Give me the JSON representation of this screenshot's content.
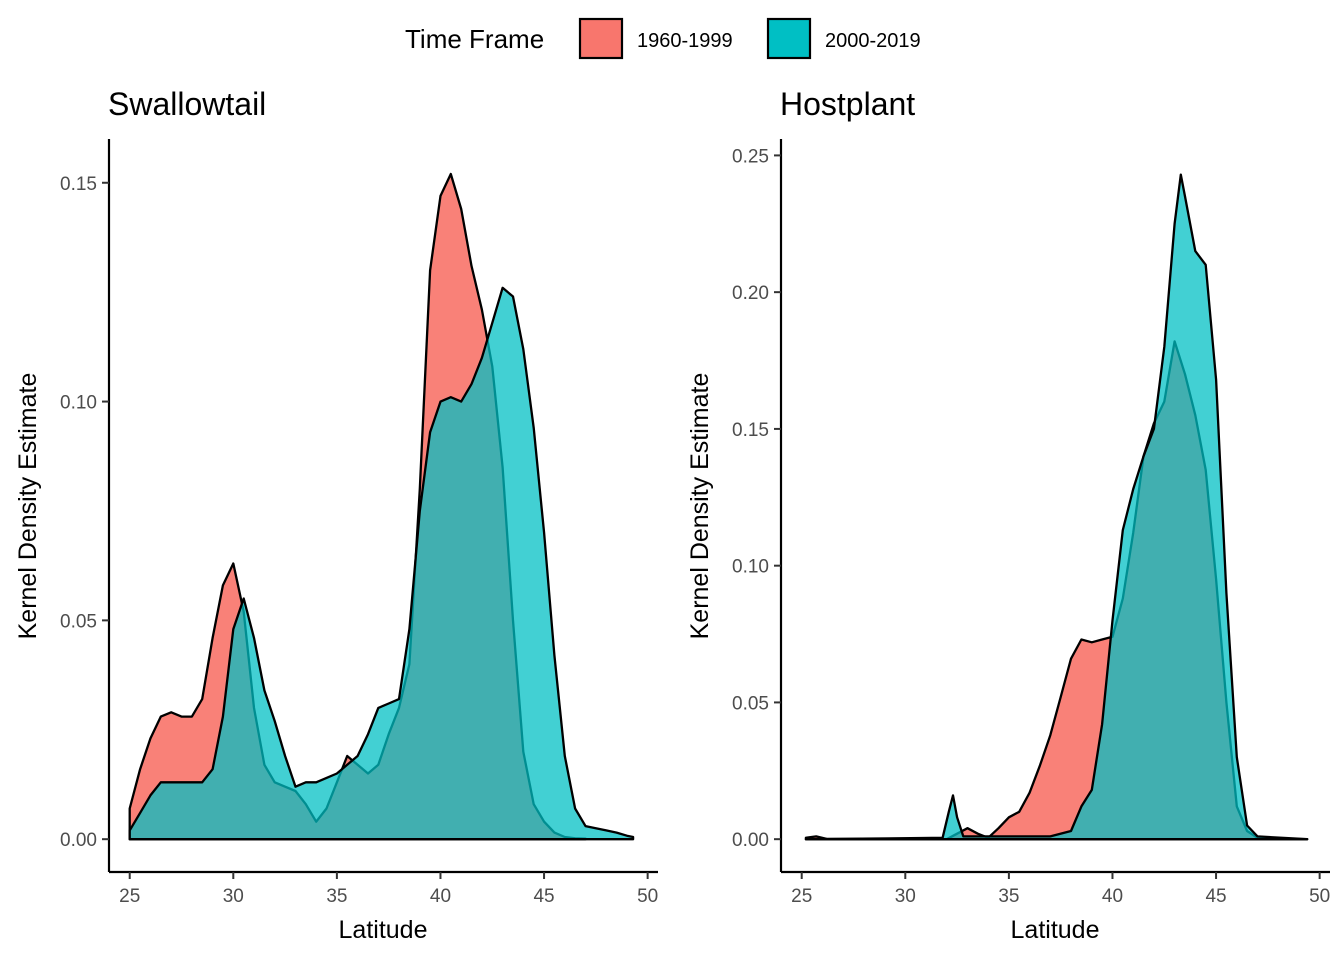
{
  "legend": {
    "title": "Time Frame",
    "position": "top",
    "items": [
      {
        "label": "1960-1999",
        "color": "#F8766D"
      },
      {
        "label": "2000-2019",
        "color": "#00BFC4"
      }
    ]
  },
  "chart_data": [
    {
      "type": "area",
      "title": "Swallowtail",
      "xlabel": "Latitude",
      "ylabel": "Kernel Density Estimate",
      "xlim": [
        24,
        50.5
      ],
      "ylim": [
        -0.0075,
        0.16
      ],
      "xticks": [
        25,
        30,
        35,
        40,
        45,
        50
      ],
      "xtick_labels": [
        "25",
        "30",
        "35",
        "40",
        "45",
        "50"
      ],
      "yticks": [
        0,
        0.05,
        0.1,
        0.15
      ],
      "ytick_labels": [
        "0.00",
        "0.05",
        "0.10",
        "0.15"
      ],
      "grid": false,
      "series": [
        {
          "name": "1960-1999",
          "color": "#F8766D",
          "x": [
            25,
            25.5,
            26,
            26.5,
            27,
            27.5,
            28,
            28.5,
            29,
            29.5,
            30,
            30.5,
            31,
            31.5,
            32,
            32.5,
            33,
            33.5,
            34,
            34.5,
            35,
            35.5,
            36,
            36.5,
            37,
            37.5,
            38,
            38.5,
            39,
            39.5,
            40,
            40.5,
            41,
            41.5,
            42,
            42.5,
            43,
            43.5,
            44,
            44.5,
            45,
            45.5,
            46,
            46.5,
            47
          ],
          "y": [
            0.007,
            0.016,
            0.023,
            0.028,
            0.029,
            0.028,
            0.028,
            0.032,
            0.046,
            0.058,
            0.063,
            0.052,
            0.03,
            0.017,
            0.013,
            0.012,
            0.011,
            0.008,
            0.004,
            0.007,
            0.013,
            0.019,
            0.017,
            0.015,
            0.017,
            0.024,
            0.03,
            0.04,
            0.08,
            0.13,
            0.147,
            0.152,
            0.144,
            0.131,
            0.121,
            0.108,
            0.085,
            0.05,
            0.02,
            0.008,
            0.004,
            0.0015,
            0.0005,
            0.0002,
            0.0001
          ]
        },
        {
          "name": "2000-2019",
          "color": "#00BFC4",
          "x": [
            25,
            25.5,
            26,
            26.5,
            27,
            27.5,
            28,
            28.5,
            29,
            29.5,
            30,
            30.5,
            31,
            31.5,
            32,
            32.5,
            33,
            33.5,
            34,
            34.5,
            35,
            35.5,
            36,
            36.5,
            37,
            37.5,
            38,
            38.5,
            39,
            39.5,
            40,
            40.5,
            41,
            41.5,
            42,
            42.5,
            43,
            43.5,
            44,
            44.5,
            45,
            45.5,
            46,
            46.5,
            47,
            47.5,
            48,
            48.5,
            49,
            49.3
          ],
          "y": [
            0.002,
            0.006,
            0.01,
            0.013,
            0.013,
            0.013,
            0.013,
            0.013,
            0.016,
            0.028,
            0.048,
            0.055,
            0.046,
            0.034,
            0.027,
            0.019,
            0.012,
            0.013,
            0.013,
            0.014,
            0.015,
            0.017,
            0.019,
            0.024,
            0.03,
            0.031,
            0.032,
            0.048,
            0.075,
            0.093,
            0.1,
            0.101,
            0.1,
            0.104,
            0.11,
            0.118,
            0.126,
            0.124,
            0.112,
            0.094,
            0.07,
            0.042,
            0.019,
            0.007,
            0.003,
            0.0025,
            0.002,
            0.0015,
            0.0008,
            0.0005
          ]
        }
      ]
    },
    {
      "type": "area",
      "title": "Hostplant",
      "xlabel": "Latitude",
      "ylabel": "Kernel Density Estimate",
      "xlim": [
        24,
        50.5
      ],
      "ylim": [
        -0.012,
        0.256
      ],
      "xticks": [
        25,
        30,
        35,
        40,
        45,
        50
      ],
      "xtick_labels": [
        "25",
        "30",
        "35",
        "40",
        "45",
        "50"
      ],
      "yticks": [
        0,
        0.05,
        0.1,
        0.15,
        0.2,
        0.25
      ],
      "ytick_labels": [
        "0.00",
        "0.05",
        "0.10",
        "0.15",
        "0.20",
        "0.25"
      ],
      "grid": false,
      "series": [
        {
          "name": "1960-1999",
          "color": "#F8766D",
          "x": [
            25.2,
            25.7,
            26.2,
            32,
            32.5,
            33,
            33.5,
            34,
            34.5,
            35,
            35.5,
            36,
            36.5,
            37,
            37.5,
            38,
            38.5,
            39,
            39.5,
            40,
            40.5,
            41,
            41.5,
            42,
            42.5,
            43,
            43.5,
            44,
            44.5,
            45,
            45.5,
            46,
            46.5,
            47,
            47.5,
            49.4
          ],
          "y": [
            0.0005,
            0.001,
            0.0001,
            0.0,
            0.002,
            0.004,
            0.002,
            0.0005,
            0.004,
            0.008,
            0.01,
            0.017,
            0.027,
            0.038,
            0.052,
            0.066,
            0.073,
            0.072,
            0.073,
            0.074,
            0.088,
            0.112,
            0.14,
            0.152,
            0.16,
            0.182,
            0.17,
            0.155,
            0.135,
            0.095,
            0.05,
            0.012,
            0.003,
            0.0005,
            0.0001,
            0.0
          ]
        },
        {
          "name": "2000-2019",
          "color": "#00BFC4",
          "x": [
            25.2,
            31.8,
            32.1,
            32.3,
            32.5,
            32.8,
            35,
            37,
            38,
            38.5,
            39,
            39.5,
            40,
            40.5,
            41,
            41.5,
            42,
            42.5,
            43,
            43.3,
            43.5,
            44,
            44.5,
            45,
            45.5,
            46,
            46.5,
            47,
            49.4
          ],
          "y": [
            0.0,
            0.0005,
            0.01,
            0.016,
            0.008,
            0.001,
            0.001,
            0.001,
            0.003,
            0.012,
            0.018,
            0.042,
            0.08,
            0.113,
            0.128,
            0.14,
            0.15,
            0.18,
            0.225,
            0.243,
            0.235,
            0.215,
            0.21,
            0.168,
            0.09,
            0.03,
            0.005,
            0.001,
            0.0
          ]
        }
      ]
    }
  ]
}
